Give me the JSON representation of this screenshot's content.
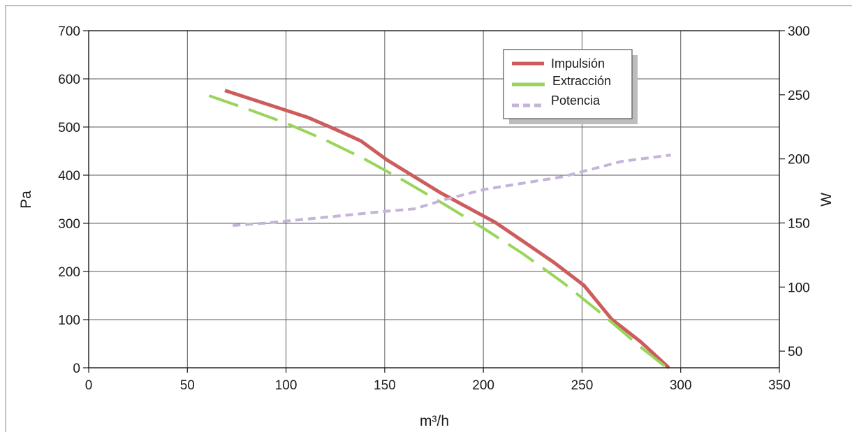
{
  "chart_data": {
    "type": "line",
    "title": "",
    "xlabel": "m³/h",
    "ylabel": "Pa",
    "y2label": "W",
    "xlim": [
      0,
      350
    ],
    "ylim": [
      0,
      700
    ],
    "y2lim": [
      37,
      300
    ],
    "xticks": [
      "0",
      "50",
      "100",
      "150",
      "200",
      "250",
      "300",
      "350"
    ],
    "yticks": [
      "0",
      "100",
      "200",
      "300",
      "400",
      "500",
      "600",
      "700"
    ],
    "y2ticks": [
      "50",
      "100",
      "150",
      "200",
      "250",
      "300"
    ],
    "grid": true,
    "legend_position": "top-right",
    "series": [
      {
        "name": "Impulsión",
        "axis": "left",
        "color": "#cd5c5c",
        "style": "solid",
        "x": [
          69,
          90,
          111,
          124,
          138,
          151,
          165,
          178,
          192,
          206,
          220,
          236,
          251,
          265,
          280,
          294
        ],
        "y": [
          576,
          548,
          520,
          497,
          471,
          432,
          397,
          364,
          333,
          302,
          263,
          218,
          171,
          101,
          53,
          0
        ]
      },
      {
        "name": "Extracción",
        "axis": "left",
        "color": "#99d55a",
        "style": "dashed",
        "x": [
          61,
          80,
          100,
          120,
          140,
          160,
          180,
          200,
          220,
          240,
          260,
          280,
          293
        ],
        "y": [
          565,
          538,
          508,
          473,
          433,
          388,
          340,
          290,
          237,
          178,
          112,
          42,
          0
        ]
      },
      {
        "name": "Potencia",
        "axis": "right",
        "color": "#c3b4d8",
        "style": "dotted",
        "x": [
          73,
          90,
          110,
          130,
          150,
          165,
          180,
          200,
          220,
          240,
          255,
          270,
          295
        ],
        "y": [
          148,
          150,
          153,
          156,
          159,
          161,
          168,
          176,
          181,
          186,
          192,
          198,
          203
        ]
      }
    ]
  }
}
